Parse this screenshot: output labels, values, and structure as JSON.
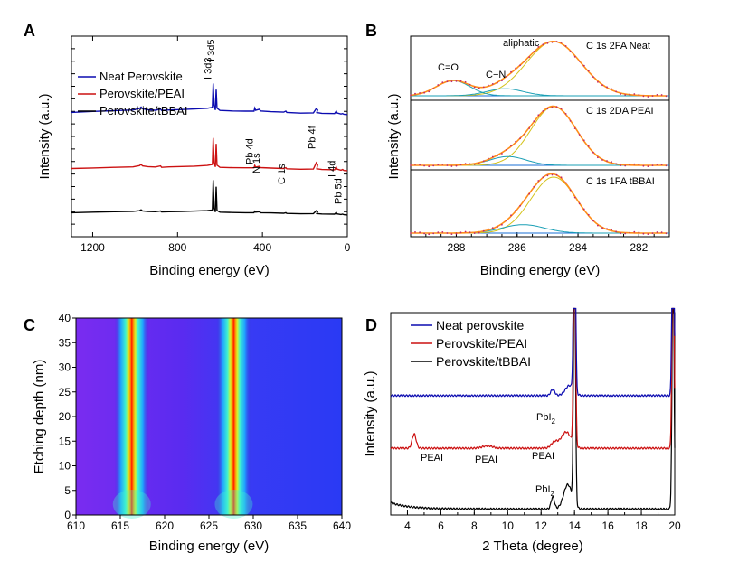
{
  "panels": {
    "a": {
      "letter": "A"
    },
    "b": {
      "letter": "B"
    },
    "c": {
      "letter": "C"
    },
    "d": {
      "letter": "D"
    }
  },
  "chart_data": [
    {
      "id": "a",
      "type": "line",
      "xlabel": "Binding energy (eV)",
      "ylabel": "Intensity (a.u.)",
      "xlim": [
        1300,
        0
      ],
      "x_reversed": true,
      "xticks": [
        1200,
        800,
        400,
        0
      ],
      "y_tick_labels_shown": false,
      "legend_position": "top-left",
      "series": [
        {
          "name": "Neat Perovskite",
          "color": "#0b0bb0",
          "offset": 0.62,
          "points": [
            [
              1300,
              0.0
            ],
            [
              1200,
              0.08
            ],
            [
              1100,
              0.14
            ],
            [
              1010,
              0.2
            ],
            [
              980,
              0.32
            ],
            [
              972,
              0.44
            ],
            [
              965,
              0.3
            ],
            [
              940,
              0.22
            ],
            [
              905,
              0.18
            ],
            [
              880,
              0.27
            ],
            [
              875,
              0.16
            ],
            [
              840,
              0.2
            ],
            [
              780,
              0.24
            ],
            [
              720,
              0.28
            ],
            [
              660,
              0.34
            ],
            [
              636,
              0.42
            ],
            [
              632,
              2.4
            ],
            [
              628,
              0.6
            ],
            [
              622,
              0.2
            ],
            [
              618,
              1.9
            ],
            [
              614,
              0.35
            ],
            [
              600,
              0.16
            ],
            [
              540,
              0.12
            ],
            [
              480,
              0.1
            ],
            [
              440,
              0.1
            ],
            [
              436,
              0.36
            ],
            [
              432,
              0.18
            ],
            [
              415,
              0.26
            ],
            [
              408,
              0.12
            ],
            [
              360,
              0.06
            ],
            [
              300,
              0.02
            ],
            [
              290,
              0.1
            ],
            [
              285,
              0.0
            ],
            [
              220,
              -0.06
            ],
            [
              160,
              -0.04
            ],
            [
              146,
              0.32
            ],
            [
              140,
              0.2
            ],
            [
              144,
              -0.02
            ],
            [
              120,
              -0.08
            ],
            [
              60,
              -0.1
            ],
            [
              52,
              0.1
            ],
            [
              48,
              -0.05
            ],
            [
              30,
              -0.14
            ],
            [
              22,
              -0.1
            ],
            [
              16,
              -0.16
            ],
            [
              0,
              -0.18
            ]
          ]
        },
        {
          "name": "Perovskite/PEAI",
          "color": "#cc1111",
          "offset": 0.34,
          "points": [
            [
              1300,
              0.0
            ],
            [
              1200,
              0.05
            ],
            [
              1100,
              0.1
            ],
            [
              1010,
              0.14
            ],
            [
              980,
              0.24
            ],
            [
              972,
              0.34
            ],
            [
              965,
              0.22
            ],
            [
              940,
              0.16
            ],
            [
              905,
              0.13
            ],
            [
              880,
              0.22
            ],
            [
              875,
              0.1
            ],
            [
              840,
              0.14
            ],
            [
              780,
              0.17
            ],
            [
              720,
              0.2
            ],
            [
              660,
              0.26
            ],
            [
              636,
              0.34
            ],
            [
              632,
              2.55
            ],
            [
              628,
              0.5
            ],
            [
              622,
              0.14
            ],
            [
              618,
              2.05
            ],
            [
              614,
              0.28
            ],
            [
              600,
              0.1
            ],
            [
              540,
              0.07
            ],
            [
              480,
              0.06
            ],
            [
              440,
              0.06
            ],
            [
              436,
              0.26
            ],
            [
              432,
              0.12
            ],
            [
              415,
              0.18
            ],
            [
              408,
              0.08
            ],
            [
              360,
              0.04
            ],
            [
              300,
              0.0
            ],
            [
              290,
              0.07
            ],
            [
              285,
              -0.02
            ],
            [
              220,
              -0.06
            ],
            [
              160,
              -0.04
            ],
            [
              146,
              0.48
            ],
            [
              140,
              0.3
            ],
            [
              144,
              -0.02
            ],
            [
              120,
              -0.08
            ],
            [
              60,
              -0.1
            ],
            [
              52,
              0.12
            ],
            [
              48,
              -0.05
            ],
            [
              30,
              -0.14
            ],
            [
              22,
              -0.08
            ],
            [
              16,
              -0.16
            ],
            [
              0,
              -0.18
            ]
          ]
        },
        {
          "name": "Perovskite/tBBAI",
          "color": "#000000",
          "offset": 0.12,
          "points": [
            [
              1300,
              0.0
            ],
            [
              1200,
              0.04
            ],
            [
              1100,
              0.08
            ],
            [
              1010,
              0.11
            ],
            [
              980,
              0.16
            ],
            [
              972,
              0.24
            ],
            [
              965,
              0.14
            ],
            [
              940,
              0.1
            ],
            [
              905,
              0.08
            ],
            [
              880,
              0.14
            ],
            [
              875,
              0.06
            ],
            [
              840,
              0.08
            ],
            [
              780,
              0.1
            ],
            [
              720,
              0.13
            ],
            [
              660,
              0.17
            ],
            [
              636,
              0.22
            ],
            [
              632,
              2.7
            ],
            [
              628,
              0.36
            ],
            [
              622,
              0.06
            ],
            [
              618,
              2.15
            ],
            [
              614,
              0.18
            ],
            [
              600,
              0.04
            ],
            [
              540,
              0.01
            ],
            [
              480,
              0.0
            ],
            [
              440,
              0.0
            ],
            [
              436,
              0.12
            ],
            [
              432,
              0.04
            ],
            [
              415,
              0.08
            ],
            [
              408,
              0.0
            ],
            [
              360,
              -0.02
            ],
            [
              300,
              -0.05
            ],
            [
              290,
              0.0
            ],
            [
              285,
              -0.06
            ],
            [
              220,
              -0.09
            ],
            [
              160,
              -0.08
            ],
            [
              146,
              0.16
            ],
            [
              140,
              0.08
            ],
            [
              144,
              -0.08
            ],
            [
              120,
              -0.11
            ],
            [
              60,
              -0.12
            ],
            [
              52,
              0.02
            ],
            [
              48,
              -0.1
            ],
            [
              30,
              -0.15
            ],
            [
              22,
              -0.12
            ],
            [
              16,
              -0.17
            ],
            [
              0,
              -0.19
            ]
          ]
        }
      ],
      "annotations": [
        {
          "text": "I 3d3",
          "x": 632
        },
        {
          "text": "I 3d5",
          "x": 618
        },
        {
          "text": "Pb 4d",
          "x": 436
        },
        {
          "text": "N 1s",
          "x": 404
        },
        {
          "text": "C 1s",
          "x": 286
        },
        {
          "text": "Pb 4f",
          "x": 142
        },
        {
          "text": "I 4d",
          "x": 50
        },
        {
          "text": "Pb 5d",
          "x": 20
        }
      ]
    },
    {
      "id": "b",
      "type": "line",
      "xlabel": "Binding energy (eV)",
      "ylabel": "Intensity (a.u.)",
      "xlim": [
        289.5,
        281
      ],
      "x_reversed": true,
      "xticks": [
        288,
        286,
        284,
        282
      ],
      "y_tick_labels_shown": false,
      "stacks": [
        {
          "label": "C 1s 2FA Neat",
          "scale": 1.0,
          "peaks": [
            {
              "center": 284.8,
              "height": 1.0,
              "width": 0.9
            },
            {
              "center": 286.4,
              "height": 0.13,
              "width": 0.6
            },
            {
              "center": 288.1,
              "height": 0.28,
              "width": 0.55
            }
          ],
          "annotations": [
            {
              "text": "C=O",
              "x": 288.0
            },
            {
              "text": "C−N",
              "x": 286.5
            },
            {
              "text": "aliphatic",
              "x": 285.9
            }
          ]
        },
        {
          "label": "C 1s 2DA PEAI",
          "scale": 0.95,
          "peaks": [
            {
              "center": 284.8,
              "height": 1.0,
              "width": 0.75
            },
            {
              "center": 286.3,
              "height": 0.15,
              "width": 0.6
            }
          ],
          "annotations": []
        },
        {
          "label": "C 1s 1FA tBBAI",
          "scale": 0.92,
          "peaks": [
            {
              "center": 284.8,
              "height": 1.0,
              "width": 0.75
            },
            {
              "center": 285.8,
              "height": 0.15,
              "width": 0.7
            }
          ],
          "annotations": []
        }
      ],
      "colors": {
        "data": "#c0286a",
        "envelope": "#ff8c1a",
        "component_main": "#d4c21a",
        "component_minor": "#1a9fb5",
        "baseline": "#1a6fd4"
      }
    },
    {
      "id": "c",
      "type": "heatmap",
      "xlabel": "Binding energy (eV)",
      "ylabel": "Etching depth (nm)",
      "xlim": [
        610,
        640
      ],
      "ylim": [
        0,
        40
      ],
      "xticks": [
        610,
        615,
        620,
        625,
        630,
        635,
        640
      ],
      "yticks": [
        0,
        5,
        10,
        15,
        20,
        25,
        30,
        35,
        40
      ],
      "peaks": [
        {
          "center": 616.3,
          "width": 0.75
        },
        {
          "center": 627.8,
          "width": 0.75
        }
      ],
      "colormap": "jet"
    },
    {
      "id": "d",
      "type": "line",
      "xlabel": "2 Theta (degree)",
      "ylabel": "Intensity (a.u.)",
      "xlim": [
        3,
        20
      ],
      "xticks": [
        4,
        6,
        8,
        10,
        12,
        14,
        16,
        18,
        20
      ],
      "y_tick_labels_shown": false,
      "legend_position": "top-left",
      "series": [
        {
          "name": "Neat perovskite",
          "color": "#0b0bb0",
          "offset": 0.59,
          "features": [
            {
              "x": 12.7,
              "h": 0.03,
              "w": 0.12
            },
            {
              "x": 14.0,
              "h": 1.2,
              "w": 0.06
            },
            {
              "x": 13.7,
              "h": 0.05,
              "w": 0.25
            },
            {
              "x": 19.9,
              "h": 1.2,
              "w": 0.06
            }
          ]
        },
        {
          "name": "Perovskite/PEAI",
          "color": "#cc1111",
          "offset": 0.33,
          "features": [
            {
              "x": 4.4,
              "h": 0.07,
              "w": 0.12
            },
            {
              "x": 8.8,
              "h": 0.012,
              "w": 0.3
            },
            {
              "x": 12.8,
              "h": 0.03,
              "w": 0.2
            },
            {
              "x": 13.5,
              "h": 0.08,
              "w": 0.3
            },
            {
              "x": 14.0,
              "h": 1.2,
              "w": 0.06
            },
            {
              "x": 19.9,
              "h": 1.2,
              "w": 0.06
            }
          ]
        },
        {
          "name": "Perovskite/tBBAI",
          "color": "#000000",
          "offset": 0.03,
          "features": [
            {
              "x": 12.7,
              "h": 0.06,
              "w": 0.1
            },
            {
              "x": 13.6,
              "h": 0.12,
              "w": 0.25
            },
            {
              "x": 14.0,
              "h": 1.2,
              "w": 0.06
            },
            {
              "x": 19.9,
              "h": 1.2,
              "w": 0.06
            }
          ]
        }
      ],
      "annotations": [
        {
          "text": "PbI",
          "sub": "2",
          "x": 12.5,
          "row": "neat"
        },
        {
          "text": "PEAI",
          "x": 5.0,
          "row": "peai"
        },
        {
          "text": "PEAI",
          "x": 9.0,
          "row": "peai"
        },
        {
          "text": "PEAI",
          "x": 12.6,
          "row": "peai"
        },
        {
          "text": "PbI",
          "sub": "2",
          "x": 12.2,
          "row": "tbbai"
        }
      ]
    }
  ]
}
